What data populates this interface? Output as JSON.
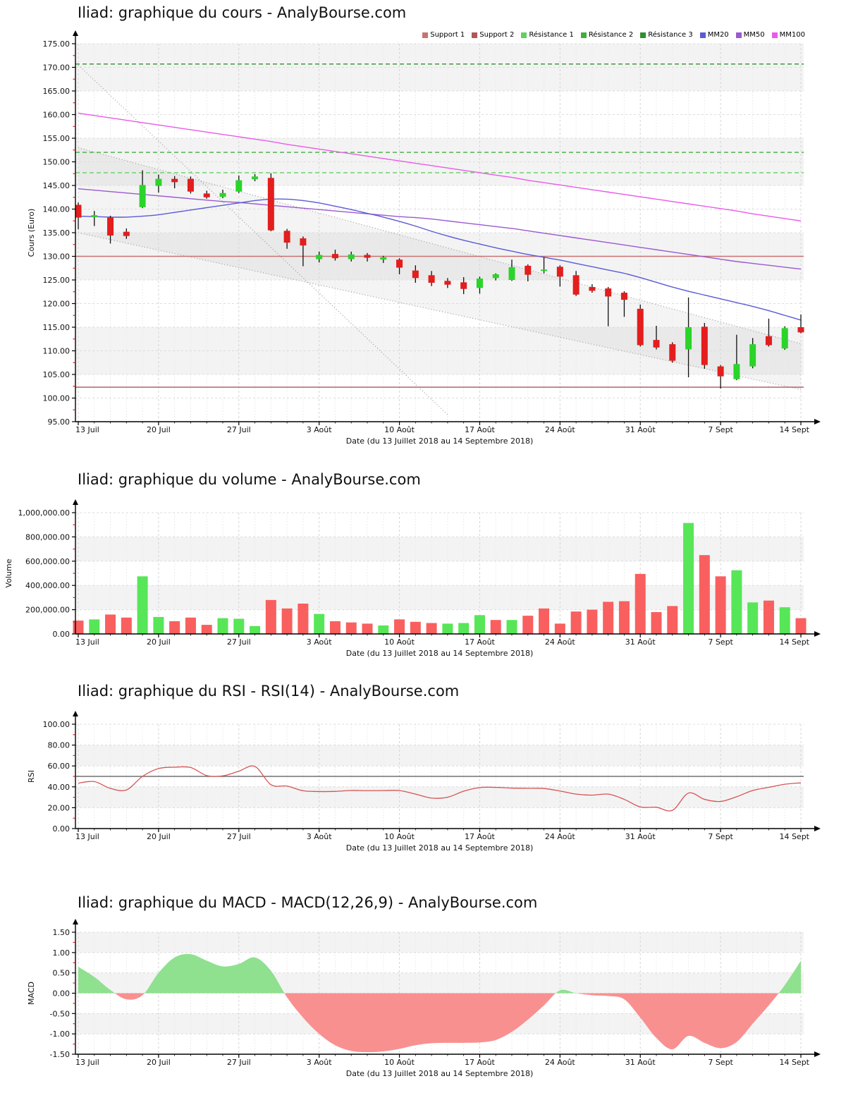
{
  "page": {
    "background": "#ffffff"
  },
  "x_axis": {
    "label": "Date (du 13 Juillet 2018 au 14 Septembre 2018)",
    "tick_labels": [
      "13 Juil",
      "20 Juil",
      "27 Juil",
      "3 Août",
      "10 Août",
      "17 Août",
      "24 Août",
      "31 Août",
      "7 Sept",
      "14 Sept"
    ],
    "tick_days": [
      0,
      5,
      10,
      15,
      20,
      25,
      30,
      35,
      40,
      45
    ],
    "num_days": 46
  },
  "legend": [
    {
      "label": "Support 1",
      "color": "#c87272"
    },
    {
      "label": "Support 2",
      "color": "#b25555"
    },
    {
      "label": "Résistance 1",
      "color": "#63cf63"
    },
    {
      "label": "Résistance 2",
      "color": "#3fae3f"
    },
    {
      "label": "Résistance 3",
      "color": "#2f8f2f"
    },
    {
      "label": "MM20",
      "color": "#5a5ad8"
    },
    {
      "label": "MM50",
      "color": "#9b59d0"
    },
    {
      "label": "MM100",
      "color": "#ea5aea"
    }
  ],
  "chart_data": [
    {
      "type": "candlestick",
      "title": "Iliad: graphique du cours - AnalyBourse.com",
      "ylabel": "Cours (Euro)",
      "xlabel": "Date (du 13 Juillet 2018 au 14 Septembre 2018)",
      "ylim": [
        95,
        175
      ],
      "y_tick_step": 5,
      "up_color": "#2ad42a",
      "down_color": "#e41d1d",
      "candles": {
        "open": [
          140.9,
          138.3,
          138.2,
          135.2,
          140.4,
          144.9,
          146.4,
          146.4,
          143.3,
          142.6,
          143.7,
          146.3,
          146.6,
          135.4,
          133.8,
          129.4,
          130.5,
          129.4,
          130.3,
          129.3,
          129.3,
          127.0,
          126.0,
          124.8,
          124.5,
          123.3,
          125.4,
          125.0,
          128.0,
          126.9,
          127.8,
          126.0,
          123.5,
          123.2,
          122.3,
          118.9,
          112.3,
          111.4,
          110.3,
          115.1,
          106.7,
          104.0,
          106.7,
          113.1,
          110.5,
          115.0
        ],
        "high": [
          141.4,
          139.6,
          138.6,
          135.9,
          148.2,
          147.3,
          147.0,
          146.9,
          143.9,
          144.1,
          147.1,
          147.4,
          147.6,
          135.8,
          134.2,
          131.0,
          131.4,
          131.0,
          130.7,
          130.1,
          129.6,
          128.1,
          126.9,
          125.4,
          125.6,
          125.7,
          126.4,
          129.3,
          128.3,
          129.8,
          128.1,
          126.9,
          124.1,
          123.5,
          122.6,
          119.8,
          115.3,
          111.8,
          121.3,
          115.9,
          107.0,
          113.4,
          112.7,
          116.8,
          115.2,
          117.7
        ],
        "low": [
          135.7,
          136.4,
          132.7,
          133.7,
          140.2,
          143.5,
          144.4,
          143.3,
          142.2,
          142.3,
          143.4,
          145.9,
          135.3,
          131.6,
          127.9,
          128.7,
          129.1,
          128.9,
          128.9,
          128.6,
          126.2,
          124.4,
          123.7,
          123.3,
          122.0,
          122.1,
          124.9,
          124.8,
          124.7,
          126.4,
          123.6,
          121.6,
          122.3,
          115.2,
          117.2,
          110.9,
          110.3,
          107.5,
          104.4,
          106.2,
          102.0,
          103.8,
          106.3,
          110.9,
          110.2,
          113.7
        ],
        "close": [
          138.2,
          138.7,
          134.4,
          134.3,
          145.1,
          146.4,
          145.7,
          143.7,
          142.5,
          143.4,
          146.1,
          146.9,
          135.5,
          132.9,
          132.3,
          130.3,
          129.6,
          130.4,
          129.7,
          129.8,
          127.6,
          125.4,
          124.4,
          124.0,
          123.1,
          125.3,
          126.2,
          127.7,
          126.1,
          127.2,
          125.7,
          121.9,
          122.7,
          121.5,
          120.8,
          111.2,
          110.7,
          107.9,
          115.0,
          107.0,
          104.6,
          107.2,
          111.4,
          111.2,
          114.8,
          113.9
        ]
      },
      "moving_averages": [
        {
          "name": "MM20",
          "color": "#5a5ad8",
          "values": [
            138.5,
            138.4,
            138.3,
            138.3,
            138.5,
            138.8,
            139.3,
            139.8,
            140.3,
            140.8,
            141.3,
            141.8,
            142.1,
            142.1,
            141.8,
            141.3,
            140.6,
            139.9,
            139.1,
            138.3,
            137.4,
            136.4,
            135.3,
            134.3,
            133.4,
            132.6,
            131.8,
            131.1,
            130.4,
            129.8,
            129.2,
            128.5,
            127.8,
            127.1,
            126.4,
            125.5,
            124.5,
            123.5,
            122.6,
            121.8,
            121.0,
            120.2,
            119.4,
            118.5,
            117.5,
            116.5
          ]
        },
        {
          "name": "MM50",
          "color": "#9b59d0",
          "values": [
            144.3,
            144.0,
            143.7,
            143.4,
            143.1,
            142.8,
            142.5,
            142.2,
            141.9,
            141.6,
            141.4,
            141.1,
            140.8,
            140.5,
            140.2,
            139.9,
            139.6,
            139.3,
            139.0,
            138.7,
            138.4,
            138.2,
            137.9,
            137.5,
            137.1,
            136.7,
            136.3,
            135.9,
            135.4,
            134.9,
            134.4,
            133.9,
            133.4,
            132.9,
            132.4,
            131.9,
            131.4,
            130.9,
            130.4,
            129.9,
            129.4,
            128.9,
            128.5,
            128.1,
            127.7,
            127.3
          ]
        },
        {
          "name": "MM100",
          "color": "#ea5aea",
          "values": [
            160.3,
            159.8,
            159.3,
            158.8,
            158.3,
            157.8,
            157.3,
            156.8,
            156.3,
            155.8,
            155.3,
            154.8,
            154.3,
            153.7,
            153.2,
            152.7,
            152.2,
            151.7,
            151.2,
            150.7,
            150.2,
            149.7,
            149.2,
            148.7,
            148.2,
            147.7,
            147.2,
            146.7,
            146.1,
            145.6,
            145.1,
            144.6,
            144.1,
            143.6,
            143.1,
            142.6,
            142.1,
            141.6,
            141.1,
            140.6,
            140.1,
            139.6,
            139.0,
            138.5,
            138.0,
            137.5
          ]
        }
      ],
      "levels": [
        {
          "name": "Support 1",
          "value": 130.0,
          "color": "#c87272",
          "style": "solid"
        },
        {
          "name": "Support 2",
          "value": 102.3,
          "color": "#b25555",
          "style": "solid"
        },
        {
          "name": "Résistance 1",
          "value": 147.7,
          "color": "#63cf63",
          "style": "dashed"
        },
        {
          "name": "Résistance 2",
          "value": 152.0,
          "color": "#3fae3f",
          "style": "dashed"
        },
        {
          "name": "Résistance 3",
          "value": 170.7,
          "color": "#2f8f2f",
          "style": "dashed"
        }
      ],
      "regression_channel": {
        "upper": {
          "x": [
            0,
            45
          ],
          "y": [
            153.0,
            111.5
          ]
        },
        "lower": {
          "x": [
            0,
            45
          ],
          "y": [
            135.0,
            101.8
          ]
        },
        "trend": {
          "x": [
            0,
            23
          ],
          "y": [
            170.5,
            96.5
          ]
        },
        "fill": "rgba(150,150,150,0.10)",
        "line_color": "#9a9a9a"
      },
      "bands": [
        [
          105,
          115
        ],
        [
          125,
          135
        ],
        [
          145,
          155
        ],
        [
          165,
          175
        ]
      ]
    },
    {
      "type": "bar",
      "title": "Iliad: graphique du volume - AnalyBourse.com",
      "ylabel": "Volume",
      "xlabel": "Date (du 13 Juillet 2018 au 14 Septembre 2018)",
      "ylim": [
        0,
        1000000
      ],
      "y_tick_step": 200000,
      "up_color": "#57e657",
      "down_color": "#f95f5f",
      "values": [
        110000,
        120000,
        160000,
        135000,
        475000,
        140000,
        105000,
        135000,
        75000,
        130000,
        125000,
        65000,
        280000,
        210000,
        250000,
        165000,
        105000,
        95000,
        85000,
        70000,
        120000,
        100000,
        90000,
        85000,
        90000,
        155000,
        115000,
        115000,
        150000,
        210000,
        85000,
        185000,
        200000,
        265000,
        270000,
        495000,
        180000,
        230000,
        915000,
        650000,
        475000,
        525000,
        260000,
        275000,
        220000,
        130000
      ],
      "directions": [
        "d",
        "u",
        "d",
        "d",
        "u",
        "u",
        "d",
        "d",
        "d",
        "u",
        "u",
        "u",
        "d",
        "d",
        "d",
        "u",
        "d",
        "d",
        "d",
        "u",
        "d",
        "d",
        "d",
        "u",
        "u",
        "u",
        "d",
        "u",
        "d",
        "d",
        "d",
        "d",
        "d",
        "d",
        "d",
        "d",
        "d",
        "d",
        "u",
        "d",
        "d",
        "u",
        "u",
        "d",
        "u",
        "d"
      ],
      "bands": [
        [
          200000,
          400000
        ],
        [
          600000,
          800000
        ]
      ]
    },
    {
      "type": "line",
      "title": "Iliad: graphique du RSI - RSI(14) - AnalyBourse.com",
      "ylabel": "RSI",
      "xlabel": "Date (du 13 Juillet 2018 au 14 Septembre 2018)",
      "ylim": [
        0,
        100
      ],
      "y_tick_step": 20,
      "line_color": "#d65454",
      "reference_line": 50,
      "values": [
        43.5,
        45,
        38.5,
        37,
        50,
        57.5,
        58.8,
        58.5,
        50.8,
        50.5,
        55,
        59.5,
        42,
        40.7,
        36.2,
        35.5,
        35.6,
        36.5,
        36.3,
        36.4,
        36.4,
        33,
        29.2,
        30,
        35.8,
        39.3,
        39.5,
        38.8,
        38.6,
        38.4,
        36,
        33,
        32,
        33,
        28,
        20.7,
        20.4,
        17.5,
        34,
        28,
        26,
        30.5,
        36.5,
        39.5,
        42.5,
        43.8
      ],
      "bands": [
        [
          20,
          40
        ],
        [
          60,
          80
        ]
      ]
    },
    {
      "type": "area",
      "title": "Iliad: graphique du MACD - MACD(12,26,9) - AnalyBourse.com",
      "ylabel": "MACD",
      "xlabel": "Date (du 13 Juillet 2018 au 14 Septembre 2018)",
      "ylim": [
        -1.5,
        1.5
      ],
      "y_tick_step": 0.5,
      "positive_color": "#8fe08f",
      "negative_color": "#f99090",
      "values": [
        0.65,
        0.4,
        0.08,
        -0.15,
        -0.05,
        0.5,
        0.88,
        0.96,
        0.8,
        0.66,
        0.72,
        0.88,
        0.55,
        -0.1,
        -0.6,
        -1.0,
        -1.28,
        -1.42,
        -1.45,
        -1.43,
        -1.37,
        -1.28,
        -1.23,
        -1.22,
        -1.22,
        -1.21,
        -1.15,
        -0.95,
        -0.65,
        -0.3,
        0.07,
        0.0,
        -0.05,
        -0.07,
        -0.15,
        -0.6,
        -1.1,
        -1.38,
        -1.05,
        -1.22,
        -1.35,
        -1.2,
        -0.75,
        -0.3,
        0.2,
        0.8
      ],
      "bands": [
        [
          -1,
          -0.5
        ],
        [
          0,
          0.5
        ],
        [
          1,
          1.5
        ]
      ]
    }
  ]
}
